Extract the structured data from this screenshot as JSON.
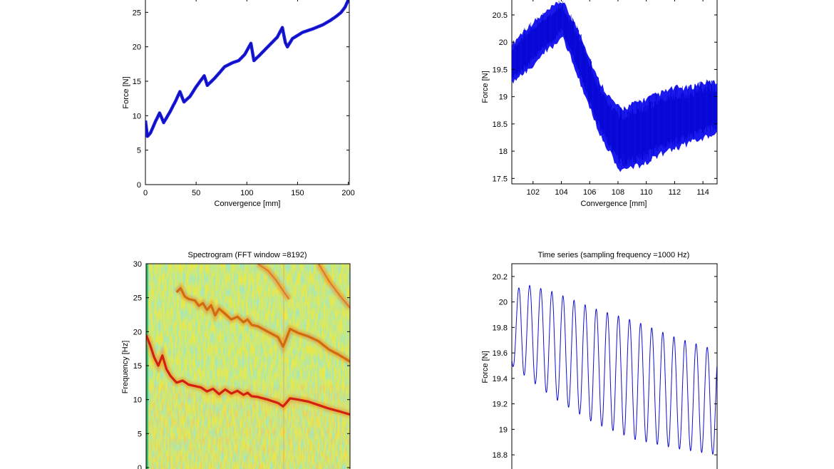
{
  "chart_data": [
    {
      "type": "line",
      "title": "",
      "xlabel": "Convergence [mm]",
      "ylabel": "Force [N]",
      "xlim": [
        0,
        201
      ],
      "ylim": [
        0,
        27
      ],
      "xticks": [
        "0",
        "50",
        "100",
        "150",
        "200"
      ],
      "yticks": [
        "0",
        "5",
        "10",
        "15",
        "20",
        "25"
      ],
      "series_color": "#1010e0",
      "grid": false,
      "band_width": 0.6,
      "x": [
        0,
        2,
        5,
        10,
        14,
        18,
        24,
        30,
        34,
        38,
        44,
        50,
        58,
        61,
        68,
        74,
        78,
        82,
        86,
        92,
        98,
        104,
        107,
        112,
        118,
        124,
        130,
        135,
        138,
        140,
        145,
        155,
        165,
        175,
        182,
        188,
        193,
        197,
        200,
        201
      ],
      "y": [
        9.3,
        7.0,
        7.5,
        9.2,
        10.4,
        9.0,
        10.5,
        12.2,
        13.5,
        12.0,
        12.8,
        14.2,
        15.8,
        14.4,
        15.4,
        16.4,
        17.1,
        17.4,
        17.7,
        18.0,
        18.9,
        20.5,
        18.0,
        18.7,
        19.6,
        20.5,
        21.4,
        22.8,
        20.6,
        20.0,
        21.2,
        22.1,
        22.6,
        23.2,
        23.8,
        24.4,
        25.0,
        25.8,
        26.8,
        27.0
      ]
    },
    {
      "type": "line",
      "title": "",
      "xlabel": "Convergence [mm]",
      "ylabel": "Force [N]",
      "xlim": [
        100.5,
        115
      ],
      "ylim": [
        17.4,
        20.8
      ],
      "xticks": [
        "102",
        "104",
        "106",
        "108",
        "110",
        "112",
        "114"
      ],
      "yticks": [
        "17.5",
        "18",
        "18.5",
        "19",
        "19.5",
        "20",
        "20.5"
      ],
      "series_color": "#1010e0",
      "grid": false,
      "x": [
        100.5,
        101.5,
        102.5,
        103.5,
        104.0,
        104.5,
        105.5,
        106.5,
        107.5,
        108.2,
        109.0,
        110.0,
        111.0,
        112.0,
        113.0,
        114.0,
        115.0
      ],
      "y_upper": [
        19.9,
        20.2,
        20.4,
        20.6,
        20.7,
        20.5,
        20.0,
        19.3,
        18.9,
        18.7,
        18.8,
        18.9,
        19.0,
        19.1,
        19.1,
        19.2,
        19.2
      ],
      "y_lower": [
        19.3,
        19.5,
        19.8,
        20.0,
        20.2,
        19.9,
        19.2,
        18.5,
        18.0,
        17.7,
        17.75,
        17.85,
        18.0,
        18.1,
        18.2,
        18.3,
        18.4
      ]
    },
    {
      "type": "heatmap",
      "title": "Spectrogram (FFT window =8192)",
      "xlabel": "",
      "ylabel": "Frequency [Hz]",
      "xlim": [
        0,
        201
      ],
      "ylim": [
        0,
        30
      ],
      "yticks": [
        "0",
        "5",
        "10",
        "15",
        "20",
        "25",
        "30"
      ],
      "colormap": "jet",
      "background_color": "#e8e84a",
      "ridges": [
        {
          "name": "",
          "color": "#d22010",
          "x": [
            0,
            4,
            8,
            12,
            16,
            20,
            24,
            30,
            36,
            42,
            48,
            54,
            60,
            66,
            72,
            78,
            84,
            90,
            96,
            100,
            104,
            110,
            120,
            130,
            135,
            138,
            142,
            150,
            160,
            170,
            180,
            190,
            201
          ],
          "y": [
            19.5,
            18.0,
            16.2,
            15.0,
            16.5,
            14.5,
            13.5,
            12.5,
            12.8,
            12.2,
            12.0,
            11.8,
            11.2,
            11.6,
            10.8,
            11.5,
            10.9,
            11.3,
            10.7,
            11.0,
            10.5,
            10.4,
            10.0,
            9.5,
            9.0,
            9.5,
            10.2,
            10.0,
            9.7,
            9.2,
            8.7,
            8.3,
            7.8
          ]
        },
        {
          "name": "",
          "color": "#d26a10",
          "x": [
            30,
            34,
            38,
            42,
            48,
            52,
            56,
            60,
            64,
            68,
            72,
            78,
            84,
            90,
            96,
            100,
            104,
            110,
            120,
            130,
            135,
            138,
            142,
            150,
            160,
            170,
            180,
            190,
            201
          ],
          "y": [
            25.8,
            26.4,
            25.2,
            24.8,
            24.6,
            23.8,
            24.2,
            23.2,
            23.9,
            22.4,
            23.4,
            22.6,
            21.8,
            22.2,
            21.4,
            21.8,
            21.0,
            20.8,
            20.0,
            19.2,
            17.8,
            18.9,
            20.4,
            19.8,
            19.3,
            18.6,
            17.4,
            16.6,
            15.6
          ]
        },
        {
          "name": "",
          "color": "#e07a30",
          "x": [
            110,
            120,
            128,
            136,
            141
          ],
          "y": [
            30.0,
            29.0,
            27.6,
            25.8,
            24.8
          ]
        },
        {
          "name": "",
          "color": "#e07a30",
          "x": [
            170,
            180,
            190,
            201
          ],
          "y": [
            30.0,
            27.5,
            25.5,
            23.5
          ]
        }
      ]
    },
    {
      "type": "line",
      "title": "Time series (sampling frequency =1000 Hz)",
      "xlabel": "",
      "ylabel": "Force [N]",
      "xlim": [
        0,
        1
      ],
      "ylim": [
        18.7,
        20.3
      ],
      "yticks": [
        "18.8",
        "19",
        "19.2",
        "19.4",
        "19.6",
        "19.8",
        "20",
        "20.2"
      ],
      "series_color": "#1010e0",
      "grid": false,
      "oscillation_frequency_hz": 18.5,
      "upper_envelope": {
        "x": [
          0,
          0.04,
          0.2,
          0.4,
          0.6,
          0.8,
          1.0
        ],
        "y": [
          19.9,
          20.15,
          20.08,
          19.95,
          19.85,
          19.72,
          19.62
        ]
      },
      "lower_envelope": {
        "x": [
          0,
          0.04,
          0.2,
          0.4,
          0.6,
          0.8,
          1.0
        ],
        "y": [
          19.5,
          19.45,
          19.25,
          19.05,
          18.92,
          18.85,
          18.8
        ]
      }
    }
  ]
}
